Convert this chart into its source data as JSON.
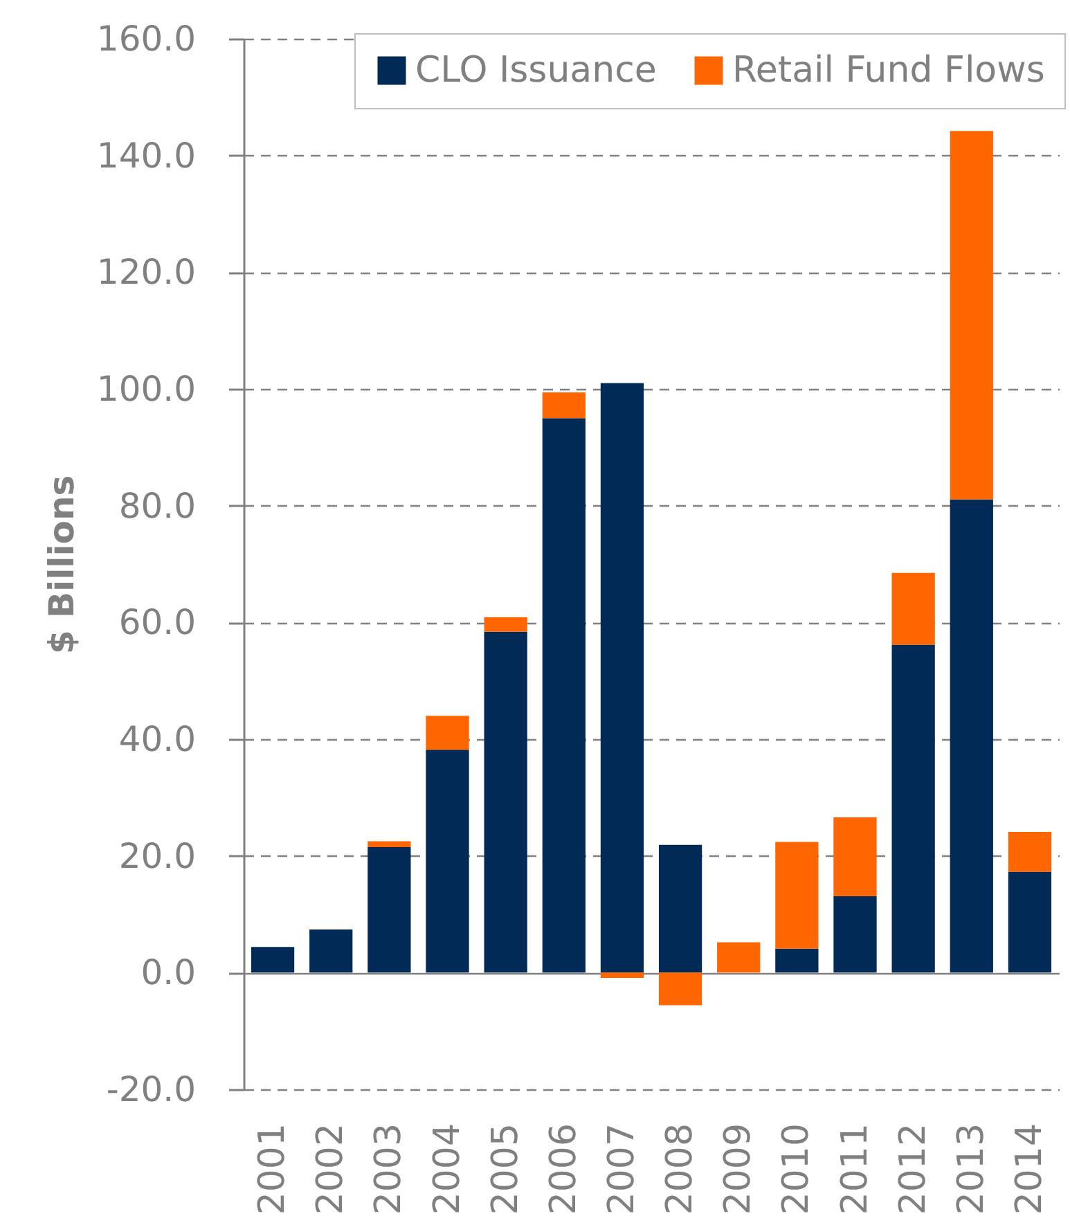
{
  "chart_data": {
    "type": "bar",
    "stacked": true,
    "ylabel": "$ Billions",
    "categories": [
      "2001",
      "2002",
      "2003",
      "2004",
      "2005",
      "2006",
      "2007",
      "2008",
      "2009",
      "2010",
      "2011",
      "2012",
      "2013",
      "2014"
    ],
    "series": [
      {
        "name": "CLO Issuance",
        "color": "#012a57",
        "values": [
          4.4,
          7.4,
          21.5,
          38.2,
          58.4,
          95.0,
          101.0,
          21.9,
          0,
          4.1,
          13.1,
          56.2,
          81.1,
          17.3
        ]
      },
      {
        "name": "Retail Fund Flows",
        "color": "#ff6600",
        "values": [
          0,
          0,
          1.0,
          5.8,
          2.5,
          4.4,
          -0.9,
          -5.6,
          5.2,
          18.3,
          13.5,
          12.3,
          63.1,
          6.8
        ]
      }
    ],
    "ylim": [
      -20,
      160
    ],
    "yticks": [
      {
        "value": -20,
        "label": "-20.0"
      },
      {
        "value": 0,
        "label": "0.0"
      },
      {
        "value": 20,
        "label": "20.0"
      },
      {
        "value": 40,
        "label": "40.0"
      },
      {
        "value": 60,
        "label": "60.0"
      },
      {
        "value": 80,
        "label": "80.0"
      },
      {
        "value": 100,
        "label": "100.0"
      },
      {
        "value": 120,
        "label": "120.0"
      },
      {
        "value": 140,
        "label": "140.0"
      },
      {
        "value": 160,
        "label": "160.0"
      }
    ],
    "grid": "y",
    "legend": "top right"
  }
}
